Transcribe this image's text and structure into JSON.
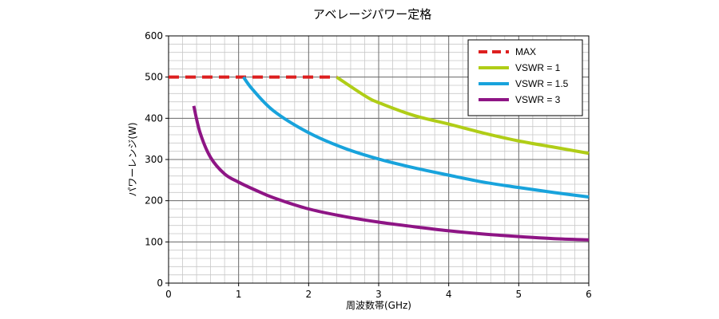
{
  "chart_data": {
    "type": "line",
    "title": "アベレージパワー定格",
    "xlabel": "周波数帯(GHz)",
    "ylabel": "パワーレンジ(W)",
    "xlim": [
      0,
      6
    ],
    "ylim": [
      0,
      600
    ],
    "x_ticks": [
      0,
      1,
      2,
      3,
      4,
      5,
      6
    ],
    "y_ticks": [
      0,
      100,
      200,
      300,
      400,
      500,
      600
    ],
    "x_minor_step": 0.2,
    "y_minor_step": 20,
    "grid": true,
    "legend_position": "top-right",
    "series": [
      {
        "name": "MAX",
        "color": "#dd1f1f",
        "dash": true,
        "points": [
          [
            0,
            500
          ],
          [
            2.4,
            500
          ]
        ]
      },
      {
        "name": "VSWR = 1",
        "color": "#b0cd17",
        "dash": false,
        "points": [
          [
            2.4,
            500
          ],
          [
            2.8,
            455
          ],
          [
            3.0,
            438
          ],
          [
            3.5,
            407
          ],
          [
            4.0,
            386
          ],
          [
            4.5,
            364
          ],
          [
            5.0,
            345
          ],
          [
            5.5,
            330
          ],
          [
            6.0,
            315
          ]
        ]
      },
      {
        "name": "VSWR = 1.5",
        "color": "#18a3dc",
        "dash": false,
        "points": [
          [
            1.07,
            500
          ],
          [
            1.2,
            470
          ],
          [
            1.5,
            418
          ],
          [
            2.0,
            365
          ],
          [
            2.5,
            328
          ],
          [
            3.0,
            301
          ],
          [
            3.5,
            280
          ],
          [
            4.0,
            262
          ],
          [
            4.5,
            245
          ],
          [
            5.0,
            232
          ],
          [
            5.5,
            220
          ],
          [
            6.0,
            209
          ]
        ]
      },
      {
        "name": "VSWR = 3",
        "color": "#8e1585",
        "dash": false,
        "points": [
          [
            0.36,
            430
          ],
          [
            0.45,
            365
          ],
          [
            0.6,
            305
          ],
          [
            0.8,
            265
          ],
          [
            1.0,
            245
          ],
          [
            1.25,
            225
          ],
          [
            1.5,
            207
          ],
          [
            2.0,
            180
          ],
          [
            2.5,
            162
          ],
          [
            3.0,
            148
          ],
          [
            3.5,
            137
          ],
          [
            4.0,
            127
          ],
          [
            4.5,
            119
          ],
          [
            5.0,
            113
          ],
          [
            5.5,
            108
          ],
          [
            6.0,
            105
          ]
        ]
      }
    ]
  }
}
